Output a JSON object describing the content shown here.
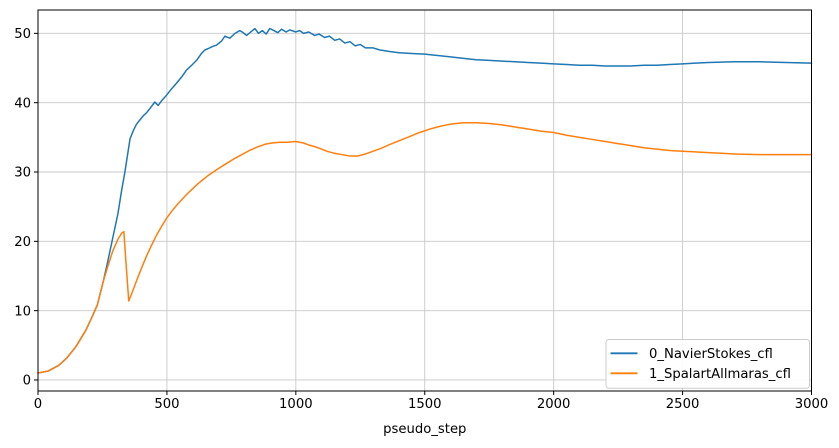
{
  "figure": {
    "background": "#ffffff"
  },
  "chart_data": {
    "type": "line",
    "title": "",
    "xlabel": "pseudo_step",
    "ylabel": "",
    "xlim": [
      0,
      3000
    ],
    "ylim": [
      -1.59,
      53.37
    ],
    "xticks": [
      0,
      500,
      1000,
      1500,
      2000,
      2500,
      3000
    ],
    "yticks": [
      0,
      10,
      20,
      30,
      40,
      50
    ],
    "grid": true,
    "grid_color": "#c8c8c8",
    "spine_color": "#000000",
    "legend": {
      "position": "lower right",
      "border_color": "#cccccc",
      "labels": [
        "0_NavierStokes_cfl",
        "1_SpalartAllmaras_cfl"
      ]
    },
    "series": [
      {
        "name": "0_NavierStokes_cfl",
        "color": "#1f77b4",
        "points": [
          [
            0,
            1.0
          ],
          [
            40,
            1.3
          ],
          [
            80,
            2.1
          ],
          [
            110,
            3.1
          ],
          [
            147,
            4.8
          ],
          [
            186,
            7.2
          ],
          [
            212,
            9.3
          ],
          [
            230,
            10.8
          ],
          [
            253,
            14.2
          ],
          [
            270,
            17.0
          ],
          [
            290,
            20.5
          ],
          [
            310,
            24.0
          ],
          [
            325,
            27.5
          ],
          [
            337,
            30.0
          ],
          [
            357,
            34.8
          ],
          [
            370,
            36.0
          ],
          [
            382,
            36.9
          ],
          [
            395,
            37.5
          ],
          [
            408,
            38.1
          ],
          [
            420,
            38.5
          ],
          [
            435,
            39.2
          ],
          [
            453,
            40.1
          ],
          [
            466,
            39.6
          ],
          [
            480,
            40.3
          ],
          [
            499,
            41.1
          ],
          [
            518,
            42.0
          ],
          [
            537,
            42.8
          ],
          [
            557,
            43.7
          ],
          [
            576,
            44.7
          ],
          [
            596,
            45.4
          ],
          [
            615,
            46.1
          ],
          [
            634,
            47.1
          ],
          [
            647,
            47.6
          ],
          [
            660,
            47.8
          ],
          [
            676,
            48.1
          ],
          [
            692,
            48.3
          ],
          [
            712,
            48.9
          ],
          [
            725,
            49.6
          ],
          [
            744,
            49.3
          ],
          [
            764,
            50.0
          ],
          [
            783,
            50.4
          ],
          [
            796,
            50.1
          ],
          [
            809,
            49.7
          ],
          [
            822,
            50.1
          ],
          [
            841,
            50.7
          ],
          [
            855,
            50.0
          ],
          [
            870,
            50.4
          ],
          [
            885,
            49.9
          ],
          [
            899,
            50.7
          ],
          [
            915,
            50.4
          ],
          [
            930,
            50.1
          ],
          [
            945,
            50.6
          ],
          [
            962,
            50.2
          ],
          [
            977,
            50.5
          ],
          [
            1000,
            50.2
          ],
          [
            1015,
            50.4
          ],
          [
            1030,
            50.0
          ],
          [
            1050,
            50.2
          ],
          [
            1073,
            49.7
          ],
          [
            1090,
            49.9
          ],
          [
            1112,
            49.4
          ],
          [
            1130,
            49.6
          ],
          [
            1151,
            49.0
          ],
          [
            1170,
            49.2
          ],
          [
            1190,
            48.6
          ],
          [
            1210,
            48.8
          ],
          [
            1230,
            48.2
          ],
          [
            1250,
            48.4
          ],
          [
            1270,
            47.9
          ],
          [
            1300,
            47.9
          ],
          [
            1326,
            47.6
          ],
          [
            1360,
            47.4
          ],
          [
            1400,
            47.2
          ],
          [
            1450,
            47.1
          ],
          [
            1500,
            47.0
          ],
          [
            1550,
            46.8
          ],
          [
            1600,
            46.6
          ],
          [
            1650,
            46.4
          ],
          [
            1700,
            46.2
          ],
          [
            1750,
            46.1
          ],
          [
            1800,
            46.0
          ],
          [
            1850,
            45.9
          ],
          [
            1900,
            45.8
          ],
          [
            1950,
            45.7
          ],
          [
            2000,
            45.6
          ],
          [
            2050,
            45.5
          ],
          [
            2100,
            45.4
          ],
          [
            2150,
            45.4
          ],
          [
            2200,
            45.3
          ],
          [
            2250,
            45.3
          ],
          [
            2300,
            45.3
          ],
          [
            2350,
            45.4
          ],
          [
            2400,
            45.4
          ],
          [
            2450,
            45.5
          ],
          [
            2500,
            45.6
          ],
          [
            2550,
            45.7
          ],
          [
            2600,
            45.8
          ],
          [
            2700,
            45.9
          ],
          [
            2800,
            45.9
          ],
          [
            2900,
            45.8
          ],
          [
            3000,
            45.7
          ]
        ]
      },
      {
        "name": "1_SpalartAllmaras_cfl",
        "color": "#ff7f0e",
        "points": [
          [
            0,
            1.0
          ],
          [
            40,
            1.3
          ],
          [
            80,
            2.1
          ],
          [
            110,
            3.1
          ],
          [
            147,
            4.8
          ],
          [
            186,
            7.2
          ],
          [
            212,
            9.3
          ],
          [
            230,
            10.8
          ],
          [
            253,
            14.2
          ],
          [
            270,
            16.3
          ],
          [
            290,
            18.6
          ],
          [
            310,
            20.3
          ],
          [
            325,
            21.2
          ],
          [
            333,
            21.4
          ],
          [
            342,
            16.5
          ],
          [
            352,
            11.4
          ],
          [
            365,
            12.6
          ],
          [
            380,
            14.1
          ],
          [
            400,
            16.0
          ],
          [
            420,
            17.8
          ],
          [
            440,
            19.4
          ],
          [
            460,
            20.9
          ],
          [
            480,
            22.2
          ],
          [
            500,
            23.4
          ],
          [
            520,
            24.4
          ],
          [
            540,
            25.3
          ],
          [
            560,
            26.1
          ],
          [
            580,
            26.9
          ],
          [
            600,
            27.6
          ],
          [
            620,
            28.3
          ],
          [
            640,
            28.9
          ],
          [
            660,
            29.5
          ],
          [
            680,
            30.0
          ],
          [
            700,
            30.5
          ],
          [
            730,
            31.2
          ],
          [
            760,
            31.9
          ],
          [
            790,
            32.5
          ],
          [
            820,
            33.1
          ],
          [
            850,
            33.6
          ],
          [
            880,
            34.0
          ],
          [
            910,
            34.2
          ],
          [
            940,
            34.3
          ],
          [
            970,
            34.3
          ],
          [
            1000,
            34.4
          ],
          [
            1028,
            34.2
          ],
          [
            1050,
            33.9
          ],
          [
            1070,
            33.7
          ],
          [
            1093,
            33.4
          ],
          [
            1120,
            33.0
          ],
          [
            1150,
            32.7
          ],
          [
            1180,
            32.5
          ],
          [
            1210,
            32.3
          ],
          [
            1240,
            32.3
          ],
          [
            1270,
            32.6
          ],
          [
            1300,
            33.0
          ],
          [
            1330,
            33.4
          ],
          [
            1360,
            33.9
          ],
          [
            1400,
            34.5
          ],
          [
            1440,
            35.1
          ],
          [
            1480,
            35.7
          ],
          [
            1520,
            36.2
          ],
          [
            1560,
            36.6
          ],
          [
            1600,
            36.9
          ],
          [
            1650,
            37.1
          ],
          [
            1700,
            37.1
          ],
          [
            1750,
            37.0
          ],
          [
            1800,
            36.8
          ],
          [
            1850,
            36.5
          ],
          [
            1900,
            36.2
          ],
          [
            1950,
            35.9
          ],
          [
            2000,
            35.7
          ],
          [
            2050,
            35.3
          ],
          [
            2100,
            35.0
          ],
          [
            2150,
            34.7
          ],
          [
            2200,
            34.4
          ],
          [
            2250,
            34.1
          ],
          [
            2300,
            33.8
          ],
          [
            2350,
            33.5
          ],
          [
            2400,
            33.3
          ],
          [
            2450,
            33.1
          ],
          [
            2500,
            33.0
          ],
          [
            2550,
            32.9
          ],
          [
            2600,
            32.8
          ],
          [
            2650,
            32.7
          ],
          [
            2700,
            32.6
          ],
          [
            2800,
            32.5
          ],
          [
            2900,
            32.5
          ],
          [
            3000,
            32.5
          ]
        ]
      }
    ]
  }
}
